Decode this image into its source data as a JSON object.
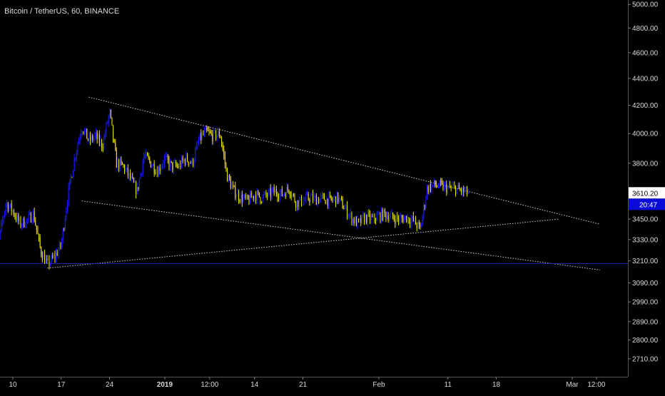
{
  "header": {
    "symbol_title": "Bitcoin / TetherUS, 60, BINANCE"
  },
  "price_tag": {
    "value": "3610.20",
    "countdown": "20:47"
  },
  "colors": {
    "background": "#000000",
    "candle_up": "#1a1aff",
    "candle_down": "#f2e600",
    "text": "#d9d9d9",
    "trendline": "#cfcfcf",
    "horizontal_line": "#2424b8",
    "price_tag_bg": "#ffffff",
    "price_tag_text": "#000000",
    "countdown_bg": "#0b0bd9",
    "countdown_text": "#ffffff"
  },
  "chart_data": {
    "type": "candlestick",
    "title": "Bitcoin / TetherUS, 60, BINANCE",
    "y_scale": "log",
    "ylim": [
      2660,
      5020
    ],
    "grid": false,
    "y_tick_labels": [
      "5000.00",
      "4800.00",
      "4600.00",
      "4400.00",
      "4200.00",
      "4000.00",
      "3800.00",
      "3610.20",
      "3450.00",
      "3330.00",
      "3210.00",
      "3090.00",
      "2990.00",
      "2890.00",
      "2800.00",
      "2710.00"
    ],
    "y_ticks": [
      5000,
      4800,
      4600,
      4400,
      4200,
      4000,
      3800,
      3610.2,
      3450,
      3330,
      3210,
      3090,
      2990,
      2890,
      2800,
      2710
    ],
    "x_tick_labels": [
      "10",
      "17",
      "24",
      "2019",
      "12:00",
      "14",
      "21",
      "Feb",
      "11",
      "18",
      "Mar",
      "12:00"
    ],
    "x_ticks": [
      "2018-12-10",
      "2018-12-17",
      "2018-12-24",
      "2019-01-01",
      "2019-01-07 12:00",
      "2019-01-14",
      "2019-01-21",
      "2019-02-01",
      "2019-02-11",
      "2019-02-18",
      "2019-03-01",
      "2019-03-04 12:00"
    ],
    "close_path": [
      [
        "2018-12-07",
        3450
      ],
      [
        "2018-12-08",
        3330
      ],
      [
        "2018-12-09",
        3550
      ],
      [
        "2018-12-10",
        3500
      ],
      [
        "2018-12-11",
        3420
      ],
      [
        "2018-12-12",
        3440
      ],
      [
        "2018-12-13",
        3480
      ],
      [
        "2018-12-14",
        3270
      ],
      [
        "2018-12-15",
        3190
      ],
      [
        "2018-12-16",
        3230
      ],
      [
        "2018-12-17",
        3300
      ],
      [
        "2018-12-18",
        3600
      ],
      [
        "2018-12-19",
        3850
      ],
      [
        "2018-12-20",
        4050
      ],
      [
        "2018-12-21",
        3950
      ],
      [
        "2018-12-22",
        3980
      ],
      [
        "2018-12-23",
        3920
      ],
      [
        "2018-12-24",
        4150
      ],
      [
        "2018-12-25",
        3800
      ],
      [
        "2018-12-26",
        3780
      ],
      [
        "2018-12-27",
        3700
      ],
      [
        "2018-12-28",
        3620
      ],
      [
        "2018-12-29",
        3850
      ],
      [
        "2018-12-30",
        3800
      ],
      [
        "2018-12-31",
        3750
      ],
      [
        "2019-01-01",
        3830
      ],
      [
        "2019-01-02",
        3780
      ],
      [
        "2019-01-03",
        3780
      ],
      [
        "2019-01-04",
        3830
      ],
      [
        "2019-01-05",
        3800
      ],
      [
        "2019-01-06",
        3960
      ],
      [
        "2019-01-07",
        4010
      ],
      [
        "2019-01-08",
        3980
      ],
      [
        "2019-01-09",
        4000
      ],
      [
        "2019-01-10",
        3720
      ],
      [
        "2019-01-11",
        3620
      ],
      [
        "2019-01-12",
        3580
      ],
      [
        "2019-01-13",
        3560
      ],
      [
        "2019-01-14",
        3600
      ],
      [
        "2019-01-15",
        3580
      ],
      [
        "2019-01-16",
        3600
      ],
      [
        "2019-01-17",
        3620
      ],
      [
        "2019-01-18",
        3600
      ],
      [
        "2019-01-19",
        3640
      ],
      [
        "2019-01-20",
        3550
      ],
      [
        "2019-01-21",
        3560
      ],
      [
        "2019-01-22",
        3580
      ],
      [
        "2019-01-23",
        3570
      ],
      [
        "2019-01-24",
        3575
      ],
      [
        "2019-01-25",
        3560
      ],
      [
        "2019-01-26",
        3580
      ],
      [
        "2019-01-27",
        3520
      ],
      [
        "2019-01-28",
        3460
      ],
      [
        "2019-01-29",
        3420
      ],
      [
        "2019-01-30",
        3460
      ],
      [
        "2019-01-31",
        3450
      ],
      [
        "2019-02-01",
        3470
      ],
      [
        "2019-02-02",
        3480
      ],
      [
        "2019-02-03",
        3460
      ],
      [
        "2019-02-04",
        3450
      ],
      [
        "2019-02-05",
        3460
      ],
      [
        "2019-02-06",
        3440
      ],
      [
        "2019-02-07",
        3390
      ],
      [
        "2019-02-08",
        3640
      ],
      [
        "2019-02-09",
        3660
      ],
      [
        "2019-02-10",
        3650
      ],
      [
        "2019-02-11",
        3640
      ],
      [
        "2019-02-12",
        3640
      ],
      [
        "2019-02-13",
        3620
      ],
      [
        "2019-02-14",
        3610.2
      ]
    ],
    "trendlines": [
      {
        "points": [
          [
            "2018-12-21",
            4260
          ],
          [
            "2019-03-05",
            3420
          ]
        ]
      },
      {
        "points": [
          [
            "2018-12-20",
            3560
          ],
          [
            "2019-03-05",
            3160
          ]
        ]
      },
      {
        "points": [
          [
            "2018-12-15",
            3170
          ],
          [
            "2019-02-27",
            3450
          ]
        ]
      }
    ],
    "horizontal_lines": [
      3195
    ],
    "last_price": 3610.2
  }
}
